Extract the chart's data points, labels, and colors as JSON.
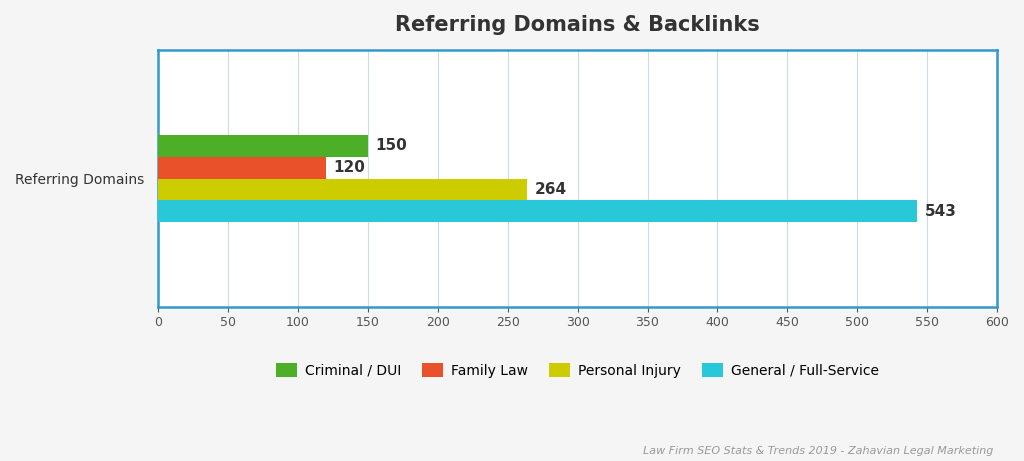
{
  "title": "Referring Domains & Backlinks",
  "title_fontsize": 15,
  "title_fontweight": "bold",
  "categories": [
    "Criminal / DUI",
    "Family Law",
    "Personal Injury",
    "General / Full-Service"
  ],
  "values": [
    150,
    120,
    264,
    543
  ],
  "colors": [
    "#4caf27",
    "#e8512a",
    "#cccc00",
    "#29c8d8"
  ],
  "ylabel": "Referring Domains",
  "xlim": [
    0,
    600
  ],
  "xticks": [
    0,
    50,
    100,
    150,
    200,
    250,
    300,
    350,
    400,
    450,
    500,
    550,
    600
  ],
  "bar_height": 0.85,
  "bar_spacing": 1.0,
  "y_center": 5.0,
  "ylim": [
    0,
    10
  ],
  "background_color": "#f5f5f5",
  "plot_background": "#ffffff",
  "grid_color": "#c8dde8",
  "border_color": "#3399cc",
  "label_color": "#333333",
  "value_fontsize": 11,
  "footnote": "Law Firm SEO Stats & Trends 2019 - Zahavian Legal Marketing",
  "footnote_color": "#999999",
  "footnote_fontsize": 8
}
